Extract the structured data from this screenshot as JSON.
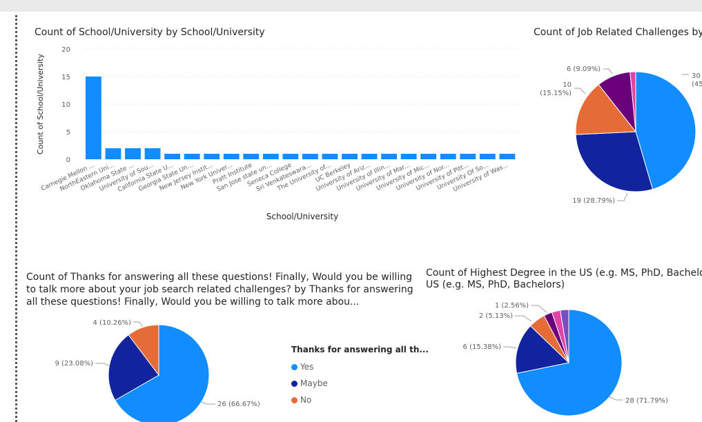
{
  "colors": {
    "blue": "#118dff",
    "navy": "#12239e",
    "orange": "#e66c37",
    "purple": "#6b007b",
    "magenta": "#e044a7",
    "violet": "#744ec2",
    "grid": "#d9d9d9",
    "label": "#605e5c"
  },
  "chart_data": [
    {
      "type": "bar",
      "title": "Count of School/University by School/University",
      "xlabel": "School/University",
      "ylabel": "Count of School/University",
      "ylim": [
        0,
        20
      ],
      "yticks": [
        0,
        5,
        10,
        15,
        20
      ],
      "grid": true,
      "categories": [
        "Carnegie Mellon ...",
        "NorthEastern Uni...",
        "Oklahoma State ...",
        "University of Sou...",
        "California State U...",
        "Georgia State Un...",
        "New Jersey Instit...",
        "New York Univer...",
        "Pratt Institute",
        "San Jose state un...",
        "Seneca College",
        "Sri Venkateswara...",
        "The University of...",
        "UC Berkeley",
        "University of Ariz...",
        "University of Illin...",
        "University of Mar...",
        "University of Mic...",
        "University of Nor...",
        "University of Pitt...",
        "University Of So...",
        "University of Was..."
      ],
      "values": [
        15,
        2,
        2,
        2,
        1,
        1,
        1,
        1,
        1,
        1,
        1,
        1,
        1,
        1,
        1,
        1,
        1,
        1,
        1,
        1,
        1,
        1
      ]
    },
    {
      "type": "pie",
      "title": "Count of Job Related Challenges by",
      "slices": [
        {
          "value": 30,
          "label": "30 (45",
          "color": "#118dff"
        },
        {
          "value": 19,
          "label": "19 (28.79%)",
          "color": "#12239e"
        },
        {
          "value": 10,
          "label": "10 (15.15%)",
          "color": "#e66c37"
        },
        {
          "value": 6,
          "label": "6 (9.09%)",
          "color": "#6b007b"
        },
        {
          "value": 1,
          "label": "",
          "color": "#e044a7"
        }
      ]
    },
    {
      "type": "pie",
      "title": "Count of Thanks for answering all these questions! Finally, Would you be willing to talk more about your job search related challenges? by Thanks for answering all these questions! Finally, Would you be willing to talk more abou...",
      "legend_title": "Thanks for answering all th...",
      "legend_position": "right",
      "slices": [
        {
          "name": "Yes",
          "value": 26,
          "label": "26 (66.67%)",
          "color": "#118dff"
        },
        {
          "name": "Maybe",
          "value": 9,
          "label": "9 (23.08%)",
          "color": "#12239e"
        },
        {
          "name": "No",
          "value": 4,
          "label": "4 (10.26%)",
          "color": "#e66c37"
        }
      ]
    },
    {
      "type": "pie",
      "title": "Count of Highest Degree in the US (e.g. MS, PhD, Bachelor",
      "title_line2": "US (e.g. MS, PhD, Bachelors)",
      "slices": [
        {
          "value": 28,
          "label": "28 (71.79%)",
          "color": "#118dff"
        },
        {
          "value": 6,
          "label": "6 (15.38%)",
          "color": "#12239e"
        },
        {
          "value": 2,
          "label": "2 (5.13%)",
          "color": "#e66c37"
        },
        {
          "value": 1,
          "label": "1 (2.56%)",
          "color": "#6b007b"
        },
        {
          "value": 1,
          "label": "",
          "color": "#e044a7"
        },
        {
          "value": 1,
          "label": "",
          "color": "#744ec2"
        }
      ]
    }
  ]
}
